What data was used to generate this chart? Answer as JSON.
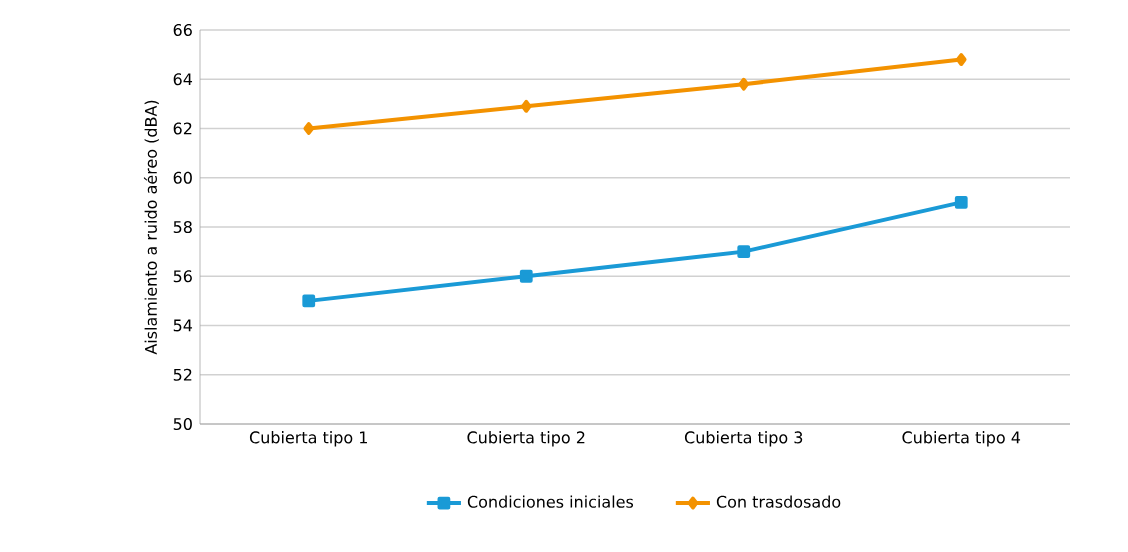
{
  "chart_data": {
    "type": "line",
    "ylabel": "Aislamiento a ruido aéreo (dBA)",
    "categories": [
      "Cubierta tipo 1",
      "Cubierta tipo 2",
      "Cubierta tipo 3",
      "Cubierta tipo 4"
    ],
    "series": [
      {
        "name": "Condiciones iniciales",
        "color": "#1a9ad6",
        "marker": "square",
        "values": [
          55,
          56,
          57,
          59
        ]
      },
      {
        "name": "Con trasdosado",
        "color": "#f39200",
        "marker": "diamond",
        "values": [
          62,
          62.9,
          63.8,
          64.8
        ]
      }
    ],
    "ylim": [
      50,
      66
    ],
    "yticks": [
      50,
      52,
      54,
      56,
      58,
      60,
      62,
      64,
      66
    ],
    "grid": "y",
    "legend": "bottom"
  }
}
